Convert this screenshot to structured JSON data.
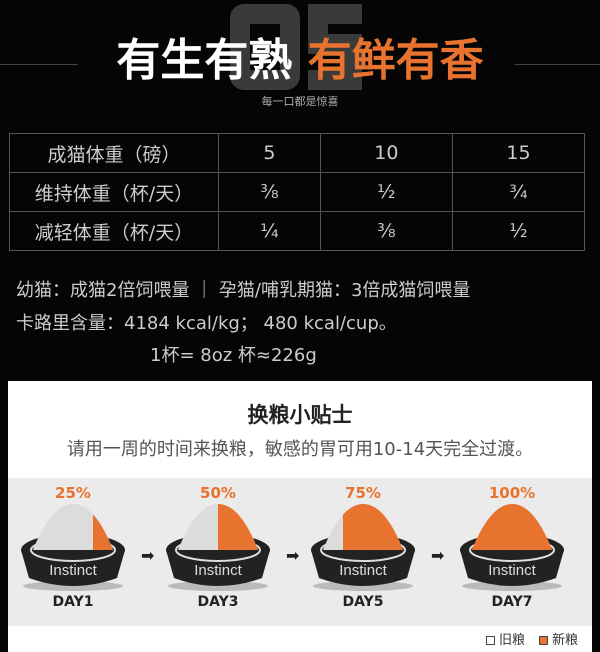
{
  "header": {
    "bg_number": "05",
    "title_white": "有生有熟",
    "title_orange": "有鲜有香",
    "subtitle": "每一口都是惊喜"
  },
  "table": {
    "rows": [
      [
        "成猫体重（磅）",
        "5",
        "10",
        "15"
      ],
      [
        "维持体重（杯/天）",
        "³⁄₈",
        "½",
        "¾"
      ],
      [
        "减轻体重（杯/天）",
        "¼",
        "³⁄₈",
        "½"
      ]
    ]
  },
  "info": {
    "line1": "幼猫：成猫2倍饲喂量 ｜ 孕猫/哺乳期猫：3倍成猫饲喂量",
    "line2": "卡路里含量：4184 kcal/kg； 480 kcal/cup。",
    "line3": "1杯= 8oz 杯≈226g"
  },
  "tips": {
    "title": "换粮小贴士",
    "subtitle": "请用一周的时间来换粮，敏感的胃可用10-14天完全过渡。",
    "steps": [
      {
        "percent": "25%",
        "new_fraction": 0.25,
        "day": "DAY1",
        "brand": "Instinct"
      },
      {
        "percent": "50%",
        "new_fraction": 0.5,
        "day": "DAY3",
        "brand": "Instinct"
      },
      {
        "percent": "75%",
        "new_fraction": 0.75,
        "day": "DAY5",
        "brand": "Instinct"
      },
      {
        "percent": "100%",
        "new_fraction": 1,
        "day": "DAY7",
        "brand": "Instinct"
      }
    ],
    "legend": {
      "old": "旧粮",
      "new": "新粮"
    }
  },
  "colors": {
    "accent": "#e8732f",
    "old_food": "#dcdcdc",
    "bowl": "#222222"
  }
}
